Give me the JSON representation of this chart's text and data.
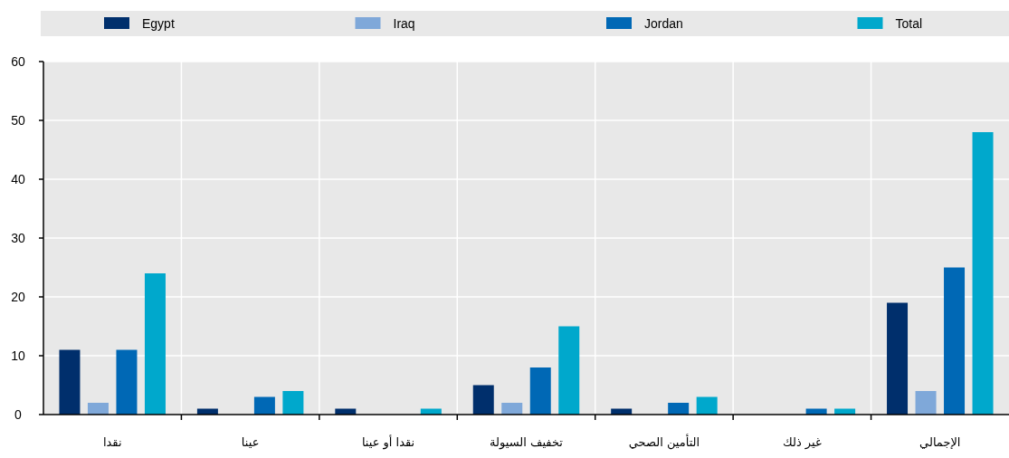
{
  "chart_data": {
    "type": "bar",
    "categories": [
      "نقدا",
      "عينا",
      "نقدا أو عينا",
      "تخفيف السيولة",
      "التأمين الصحي",
      "غير ذلك",
      "الإجمالي"
    ],
    "series": [
      {
        "name": "Egypt",
        "color": "#002f6c",
        "values": [
          11,
          1,
          1,
          5,
          1,
          0,
          19
        ]
      },
      {
        "name": "Iraq",
        "color": "#7fa8d9",
        "values": [
          2,
          0,
          0,
          2,
          0,
          0,
          4
        ]
      },
      {
        "name": "Jordan",
        "color": "#0068b5",
        "values": [
          11,
          3,
          0,
          8,
          2,
          1,
          25
        ]
      },
      {
        "name": "Total",
        "color": "#00a8cc",
        "values": [
          24,
          4,
          1,
          15,
          3,
          1,
          48
        ]
      }
    ],
    "ylim": [
      0,
      60
    ],
    "yticks": [
      0,
      10,
      20,
      30,
      40,
      50,
      60
    ],
    "grid": true,
    "legend": "top"
  }
}
